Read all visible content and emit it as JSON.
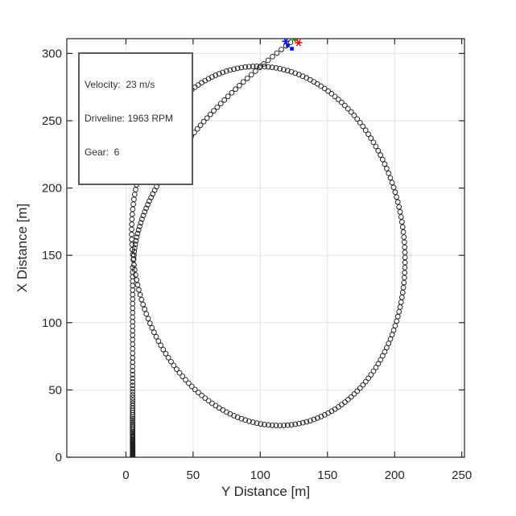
{
  "figure": {
    "kind": "matlab-vehicle-trajectory-figure",
    "background": "#ffffff",
    "axis_color": "#262626",
    "grid_color": "#e2e2e2",
    "path_marker_color": "#1f1f1f"
  },
  "annotation": {
    "lines": [
      "Velocity:  23 m/s",
      "Driveline: 1963 RPM",
      "Gear:  6"
    ]
  },
  "telemetry": {
    "velocity_mps": 23,
    "driveline_rpm": 1963,
    "gear": 6
  },
  "chart_data": {
    "type": "scatter",
    "title": "",
    "xlabel": "Y Distance [m]",
    "ylabel": "X Distance [m]",
    "xlim": [
      -44,
      252
    ],
    "ylim": [
      0,
      311
    ],
    "xticks": [
      0,
      50,
      100,
      150,
      200,
      250
    ],
    "yticks": [
      0,
      50,
      100,
      150,
      200,
      250,
      300
    ],
    "grid": true,
    "aspect": "equal",
    "legend": "none",
    "series": [
      {
        "name": "vehicle-path",
        "marker": "o",
        "color": "#1f1f1f",
        "marker_diameter_px": 6,
        "cruise_spacing_m": 3.35,
        "segments": [
          {
            "kind": "straight-launch",
            "from_xy": [
              5,
              0
            ],
            "to_xy": [
              5,
              143
            ],
            "start_spacing_m": 0.16,
            "spacing_growth": 1.045,
            "note": "dense markers at start while accelerating from rest"
          },
          {
            "kind": "ellipse-lap",
            "center_xy": [
              106,
              157
            ],
            "semi_axis_horizontal_m": 101,
            "semi_axis_vertical_m": 134,
            "tilt_deg": 8,
            "direction": "clockwise",
            "samples": 222,
            "extremes": {
              "left_xy": [
                5,
                143
              ],
              "top_xy": [
                85,
                290
              ],
              "right_xy": [
                206,
                171
              ],
              "bottom_xy": [
                125,
                25
              ]
            }
          },
          {
            "kind": "exit-arc",
            "from_xy": [
              5.7,
              144.7
            ],
            "to_xy": [
              126,
              311
            ],
            "east_exponent": 1.8,
            "samples": 62,
            "note": "straightening right-hand arc heading north-east to current position"
          }
        ]
      },
      {
        "name": "vehicle-position-markers",
        "points": [
          {
            "shape": "asterisk",
            "color": "#0000ee",
            "xy": [
              119,
              309
            ]
          },
          {
            "shape": "square",
            "color": "#0000ee",
            "xy": [
              120.5,
              306
            ]
          },
          {
            "shape": "square",
            "color": "#0000ee",
            "xy": [
              123.5,
              303.5
            ]
          },
          {
            "shape": "triangle",
            "color": "#00bf00",
            "xy": [
              125.5,
              311
            ]
          },
          {
            "shape": "asterisk",
            "color": "#ee0000",
            "xy": [
              128.5,
              308
            ]
          }
        ]
      }
    ]
  }
}
